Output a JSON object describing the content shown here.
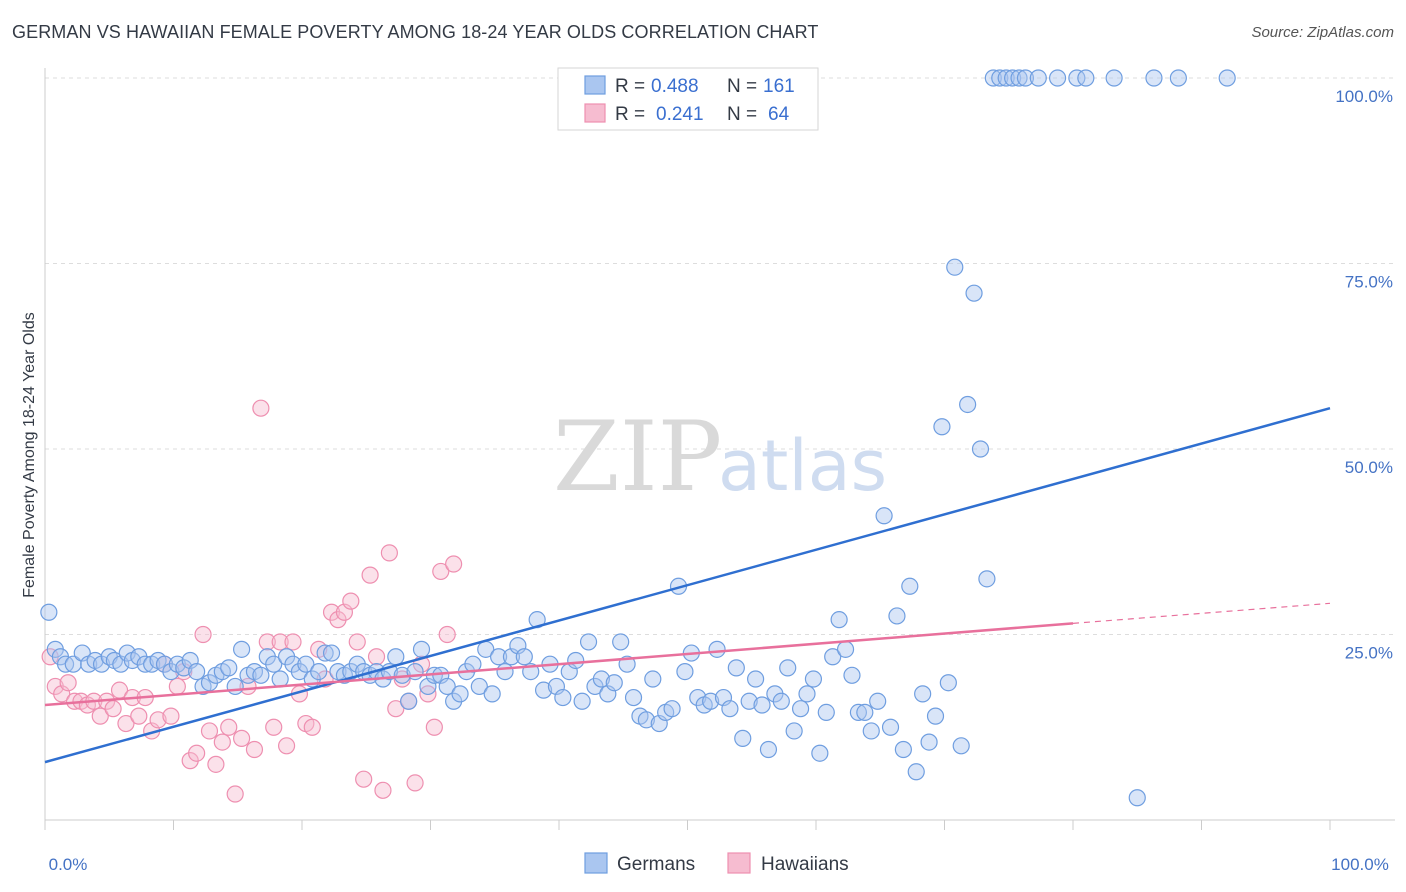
{
  "title": "GERMAN VS HAWAIIAN FEMALE POVERTY AMONG 18-24 YEAR OLDS CORRELATION CHART",
  "source": "Source: ZipAtlas.com",
  "watermark": {
    "zip": "ZIP",
    "atlas": "atlas"
  },
  "legend": {
    "rows": [
      {
        "r_label": "R =",
        "r_value": "0.488",
        "n_label": "N =",
        "n_value": "161"
      },
      {
        "r_label": "R =",
        "r_value": "0.241",
        "n_label": "N =",
        "n_value": "64"
      }
    ]
  },
  "bottom_legend": [
    "Germans",
    "Hawaiians"
  ],
  "colors": {
    "germans_fill": "#aac6f0",
    "germans_stroke": "#6f9ee0",
    "germans_line": "#2f6fd0",
    "hawaiians_fill": "#f6bcd0",
    "hawaiians_stroke": "#ee8fb0",
    "hawaiians_line": "#e8709c",
    "grid": "#dddddd",
    "axis": "#cccccc"
  },
  "chart_data": {
    "type": "scatter",
    "title": "GERMAN VS HAWAIIAN FEMALE POVERTY AMONG 18-24 YEAR OLDS CORRELATION CHART",
    "xlabel": "",
    "ylabel": "Female Poverty Among 18-24 Year Olds",
    "xlim": [
      0,
      100
    ],
    "ylim": [
      0,
      100
    ],
    "x_tick_labels": [
      "0.0%",
      "100.0%"
    ],
    "y_tick_labels": [
      "25.0%",
      "50.0%",
      "75.0%",
      "100.0%"
    ],
    "y_ticks": [
      25,
      50,
      75,
      100
    ],
    "grid": true,
    "legend_position": "top-center",
    "series": [
      {
        "name": "Germans",
        "trend": {
          "x": [
            0,
            100
          ],
          "y": [
            7.8,
            55.5
          ]
        },
        "points": [
          [
            0.3,
            28
          ],
          [
            0.8,
            23
          ],
          [
            1.2,
            22
          ],
          [
            1.6,
            21
          ],
          [
            2.2,
            21
          ],
          [
            2.9,
            22.5
          ],
          [
            3.4,
            21
          ],
          [
            3.9,
            21.5
          ],
          [
            4.4,
            21
          ],
          [
            5.0,
            22
          ],
          [
            5.4,
            21.5
          ],
          [
            5.9,
            21
          ],
          [
            6.4,
            22.5
          ],
          [
            6.8,
            21.5
          ],
          [
            7.3,
            22
          ],
          [
            7.8,
            21
          ],
          [
            8.3,
            21
          ],
          [
            8.8,
            21.5
          ],
          [
            9.3,
            21
          ],
          [
            9.8,
            20
          ],
          [
            10.3,
            21
          ],
          [
            10.8,
            20.5
          ],
          [
            11.3,
            21.5
          ],
          [
            11.8,
            20
          ],
          [
            12.3,
            18
          ],
          [
            12.8,
            18.5
          ],
          [
            13.3,
            19.5
          ],
          [
            13.8,
            20
          ],
          [
            14.3,
            20.5
          ],
          [
            14.8,
            18
          ],
          [
            15.3,
            23
          ],
          [
            15.8,
            19.5
          ],
          [
            16.3,
            20
          ],
          [
            16.8,
            19.5
          ],
          [
            17.3,
            22
          ],
          [
            17.8,
            21
          ],
          [
            18.3,
            19
          ],
          [
            18.8,
            22
          ],
          [
            19.3,
            21
          ],
          [
            19.8,
            20
          ],
          [
            20.3,
            21
          ],
          [
            20.8,
            19
          ],
          [
            21.3,
            20
          ],
          [
            21.8,
            22.5
          ],
          [
            22.3,
            22.5
          ],
          [
            22.8,
            20
          ],
          [
            23.3,
            19.5
          ],
          [
            23.8,
            20
          ],
          [
            24.3,
            21
          ],
          [
            24.8,
            20
          ],
          [
            25.3,
            19.5
          ],
          [
            25.8,
            20
          ],
          [
            26.3,
            19
          ],
          [
            26.8,
            20
          ],
          [
            27.3,
            22
          ],
          [
            27.8,
            19.5
          ],
          [
            28.3,
            16
          ],
          [
            28.8,
            20
          ],
          [
            29.3,
            23
          ],
          [
            29.8,
            18
          ],
          [
            30.3,
            19.5
          ],
          [
            30.8,
            19.5
          ],
          [
            31.3,
            18
          ],
          [
            31.8,
            16
          ],
          [
            32.3,
            17
          ],
          [
            32.8,
            20
          ],
          [
            33.3,
            21
          ],
          [
            33.8,
            18
          ],
          [
            34.3,
            23
          ],
          [
            34.8,
            17
          ],
          [
            35.3,
            22
          ],
          [
            35.8,
            20
          ],
          [
            36.3,
            22
          ],
          [
            36.8,
            23.5
          ],
          [
            37.3,
            22
          ],
          [
            37.8,
            20
          ],
          [
            38.3,
            27
          ],
          [
            38.8,
            17.5
          ],
          [
            39.3,
            21
          ],
          [
            39.8,
            18
          ],
          [
            40.3,
            16.5
          ],
          [
            40.8,
            20
          ],
          [
            41.3,
            21.5
          ],
          [
            41.8,
            16
          ],
          [
            42.3,
            24
          ],
          [
            42.8,
            18
          ],
          [
            43.3,
            19
          ],
          [
            43.8,
            17
          ],
          [
            44.3,
            18.5
          ],
          [
            44.8,
            24
          ],
          [
            45.3,
            21
          ],
          [
            45.8,
            16.5
          ],
          [
            46.3,
            14
          ],
          [
            46.8,
            13.5
          ],
          [
            47.3,
            19
          ],
          [
            47.8,
            13
          ],
          [
            48.3,
            14.5
          ],
          [
            48.8,
            15
          ],
          [
            49.3,
            31.5
          ],
          [
            49.8,
            20
          ],
          [
            50.3,
            22.5
          ],
          [
            50.8,
            16.5
          ],
          [
            51.3,
            15.5
          ],
          [
            51.8,
            16
          ],
          [
            52.3,
            23
          ],
          [
            52.8,
            16.5
          ],
          [
            53.3,
            15
          ],
          [
            53.8,
            20.5
          ],
          [
            54.3,
            11
          ],
          [
            54.8,
            16
          ],
          [
            55.3,
            19
          ],
          [
            55.8,
            15.5
          ],
          [
            56.3,
            9.5
          ],
          [
            56.8,
            17
          ],
          [
            57.3,
            16
          ],
          [
            57.8,
            20.5
          ],
          [
            58.3,
            12
          ],
          [
            58.8,
            15
          ],
          [
            59.3,
            17
          ],
          [
            59.8,
            19
          ],
          [
            60.3,
            9
          ],
          [
            60.8,
            14.5
          ],
          [
            61.3,
            22
          ],
          [
            61.8,
            27
          ],
          [
            62.3,
            23
          ],
          [
            62.8,
            19.5
          ],
          [
            63.3,
            14.5
          ],
          [
            63.8,
            14.5
          ],
          [
            64.3,
            12
          ],
          [
            64.8,
            16
          ],
          [
            65.3,
            41
          ],
          [
            65.8,
            12.5
          ],
          [
            66.3,
            27.5
          ],
          [
            66.8,
            9.5
          ],
          [
            67.3,
            31.5
          ],
          [
            67.8,
            6.5
          ],
          [
            68.3,
            17
          ],
          [
            68.8,
            10.5
          ],
          [
            69.3,
            14
          ],
          [
            69.8,
            53
          ],
          [
            70.3,
            18.5
          ],
          [
            70.8,
            74.5
          ],
          [
            71.3,
            10
          ],
          [
            71.8,
            56
          ],
          [
            72.3,
            71
          ],
          [
            72.8,
            50
          ],
          [
            73.3,
            32.5
          ],
          [
            73.8,
            100
          ],
          [
            74.3,
            100
          ],
          [
            74.8,
            100
          ],
          [
            75.3,
            100
          ],
          [
            75.8,
            100
          ],
          [
            76.3,
            100
          ],
          [
            77.3,
            100
          ],
          [
            78.8,
            100
          ],
          [
            80.3,
            100
          ],
          [
            81.0,
            100
          ],
          [
            83.2,
            100
          ],
          [
            85.0,
            3
          ],
          [
            86.3,
            100
          ],
          [
            88.2,
            100
          ],
          [
            92.0,
            100
          ]
        ]
      },
      {
        "name": "Hawaiians",
        "trend": {
          "x": [
            0,
            80
          ],
          "y": [
            15.5,
            26.5
          ]
        },
        "trend_extension": {
          "x": [
            80,
            100
          ],
          "y": [
            26.5,
            29.2
          ]
        },
        "points": [
          [
            0.4,
            22
          ],
          [
            0.8,
            18
          ],
          [
            1.3,
            17
          ],
          [
            1.8,
            18.5
          ],
          [
            2.3,
            16
          ],
          [
            2.8,
            16
          ],
          [
            3.3,
            15.5
          ],
          [
            3.8,
            16
          ],
          [
            4.3,
            14
          ],
          [
            4.8,
            16
          ],
          [
            5.3,
            15
          ],
          [
            5.8,
            17.5
          ],
          [
            6.3,
            13
          ],
          [
            6.8,
            16.5
          ],
          [
            7.3,
            14
          ],
          [
            7.8,
            16.5
          ],
          [
            8.3,
            12
          ],
          [
            8.8,
            13.5
          ],
          [
            9.3,
            21
          ],
          [
            9.8,
            14
          ],
          [
            10.3,
            18
          ],
          [
            10.8,
            20
          ],
          [
            11.3,
            8
          ],
          [
            11.8,
            9
          ],
          [
            12.3,
            25
          ],
          [
            12.8,
            12
          ],
          [
            13.3,
            7.5
          ],
          [
            13.8,
            10.5
          ],
          [
            14.3,
            12.5
          ],
          [
            14.8,
            3.5
          ],
          [
            15.3,
            11
          ],
          [
            15.8,
            18
          ],
          [
            16.3,
            9.5
          ],
          [
            16.8,
            55.5
          ],
          [
            17.3,
            24
          ],
          [
            17.8,
            12.5
          ],
          [
            18.3,
            24
          ],
          [
            18.8,
            10
          ],
          [
            19.3,
            24
          ],
          [
            19.8,
            17
          ],
          [
            20.3,
            13
          ],
          [
            20.8,
            12.5
          ],
          [
            21.3,
            23
          ],
          [
            21.8,
            19
          ],
          [
            22.3,
            28
          ],
          [
            22.8,
            27
          ],
          [
            23.3,
            28
          ],
          [
            23.8,
            29.5
          ],
          [
            24.3,
            24
          ],
          [
            24.8,
            5.5
          ],
          [
            25.3,
            33
          ],
          [
            25.8,
            22
          ],
          [
            26.3,
            4
          ],
          [
            26.8,
            36
          ],
          [
            27.3,
            15
          ],
          [
            27.8,
            19
          ],
          [
            28.3,
            16
          ],
          [
            28.8,
            5
          ],
          [
            29.3,
            21
          ],
          [
            29.8,
            17
          ],
          [
            30.3,
            12.5
          ],
          [
            30.8,
            33.5
          ],
          [
            31.3,
            25
          ],
          [
            31.8,
            34.5
          ]
        ]
      }
    ]
  }
}
